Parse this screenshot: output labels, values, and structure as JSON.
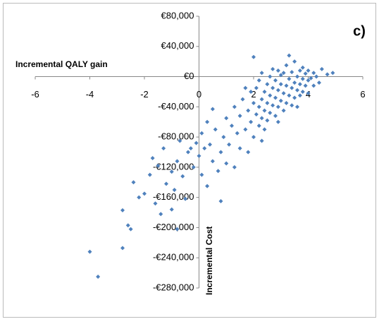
{
  "chart_data": {
    "type": "scatter",
    "annotation": "c)",
    "x_label": "Incremental QALY gain",
    "y_label": "Incremental Cost",
    "color": "#4f81bd",
    "xlim": [
      -6,
      6
    ],
    "xticks": [
      -6,
      -4,
      -2,
      0,
      2,
      4,
      6
    ],
    "ylim": [
      -280000,
      80000
    ],
    "yticks": [
      {
        "value": 80000,
        "label": "€80,000"
      },
      {
        "value": 40000,
        "label": "€40,000"
      },
      {
        "value": 0,
        "label": "€0"
      },
      {
        "value": -40000,
        "label": "-€40,000"
      },
      {
        "value": -80000,
        "label": "-€80,000"
      },
      {
        "value": -120000,
        "label": "-€120,000"
      },
      {
        "value": -160000,
        "label": "-€160,000"
      },
      {
        "value": -200000,
        "label": "-€200,000"
      },
      {
        "value": -240000,
        "label": "-€240,000"
      },
      {
        "value": -280000,
        "label": "-€280,000"
      }
    ],
    "x": [
      -4.0,
      -3.7,
      -2.8,
      -2.8,
      -2.6,
      -2.5,
      -2.4,
      -2.2,
      -2.0,
      -1.8,
      -1.7,
      -1.6,
      -1.5,
      -1.4,
      -1.3,
      -1.2,
      -1.0,
      -1.0,
      -0.9,
      -0.8,
      -0.8,
      -0.7,
      -0.6,
      -0.5,
      -0.4,
      -0.3,
      -0.2,
      -0.1,
      0.0,
      0.1,
      0.1,
      0.2,
      0.3,
      0.3,
      0.4,
      0.5,
      0.5,
      0.6,
      0.7,
      0.8,
      0.8,
      0.9,
      1.0,
      1.0,
      1.1,
      1.2,
      1.3,
      1.3,
      1.4,
      1.5,
      1.5,
      1.6,
      1.7,
      1.8,
      1.8,
      1.9,
      1.9,
      2.0,
      2.0,
      2.0,
      2.1,
      2.1,
      2.2,
      2.2,
      2.2,
      2.3,
      2.3,
      2.3,
      2.4,
      2.4,
      2.4,
      2.5,
      2.5,
      2.5,
      2.6,
      2.6,
      2.6,
      2.7,
      2.7,
      2.7,
      2.8,
      2.8,
      2.8,
      2.9,
      2.9,
      2.9,
      3.0,
      3.0,
      3.0,
      3.1,
      3.1,
      3.1,
      3.2,
      3.2,
      3.2,
      3.3,
      3.3,
      3.3,
      3.4,
      3.4,
      3.4,
      3.5,
      3.5,
      3.5,
      3.6,
      3.6,
      3.6,
      3.7,
      3.7,
      3.7,
      3.8,
      3.8,
      3.8,
      3.9,
      3.9,
      4.0,
      4.0,
      4.0,
      4.1,
      4.2,
      4.2,
      4.3,
      4.4,
      4.5,
      4.7,
      4.9,
      2.3,
      1.7,
      2.9
    ],
    "values": [
      -232000,
      -265000,
      -227000,
      -177000,
      -197000,
      -202000,
      -140000,
      -160000,
      -155000,
      -130000,
      -108000,
      -168000,
      -118000,
      -182000,
      -95000,
      -142000,
      -176000,
      -126000,
      -150000,
      -112000,
      -202000,
      -85000,
      -132000,
      -162000,
      -100000,
      -95000,
      -120000,
      -88000,
      -105000,
      -75000,
      -130000,
      -95000,
      -145000,
      -60000,
      -90000,
      -112000,
      -43000,
      -70000,
      -125000,
      -100000,
      -165000,
      -80000,
      -55000,
      -115000,
      -90000,
      -65000,
      -120000,
      -40000,
      -75000,
      -95000,
      -52000,
      -30000,
      -70000,
      -45000,
      -100000,
      -60000,
      -20000,
      26000,
      -35000,
      -80000,
      -50000,
      -15000,
      -40000,
      -65000,
      -5000,
      -30000,
      -55000,
      5000,
      -20000,
      -45000,
      -70000,
      -10000,
      -35000,
      -58000,
      0,
      -25000,
      -48000,
      -15000,
      -38000,
      10000,
      -5000,
      -28000,
      -52000,
      -18000,
      -40000,
      8000,
      -10000,
      -32000,
      2000,
      -22000,
      -45000,
      5000,
      -12000,
      -35000,
      15000,
      -3000,
      -25000,
      28000,
      -15000,
      -38000,
      6000,
      -8000,
      -28000,
      20000,
      -18000,
      0,
      -40000,
      -10000,
      8000,
      -25000,
      -3000,
      -20000,
      12000,
      -12000,
      4000,
      -5000,
      -22000,
      8000,
      -2000,
      -12000,
      5000,
      0,
      -8000,
      10000,
      3000,
      5000,
      -85000,
      -15000,
      -60000
    ]
  }
}
